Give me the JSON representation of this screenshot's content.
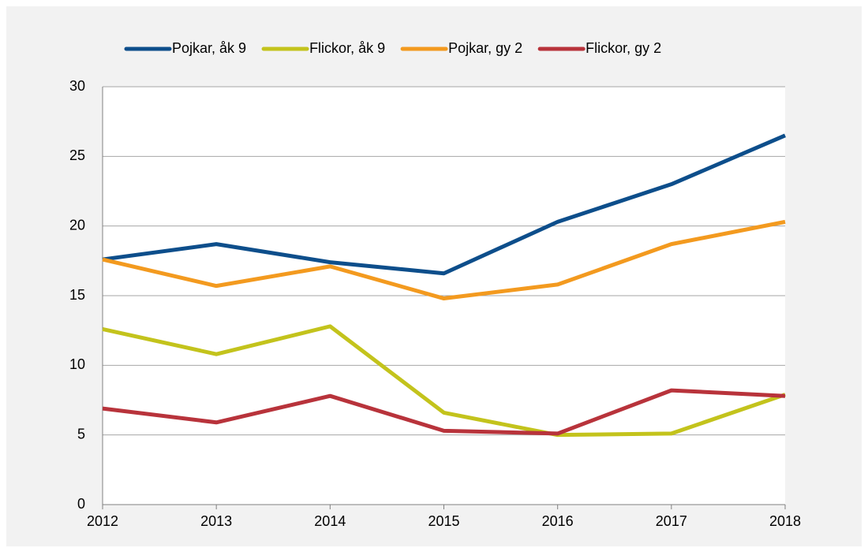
{
  "chart_data": {
    "type": "line",
    "x": [
      2012,
      2013,
      2014,
      2015,
      2016,
      2017,
      2018
    ],
    "xlim": [
      2012,
      2018
    ],
    "xticks": [
      2012,
      2013,
      2014,
      2015,
      2016,
      2017,
      2018
    ],
    "ylim": [
      0,
      30
    ],
    "yticks": [
      0,
      5,
      10,
      15,
      20,
      25,
      30
    ],
    "grid": true,
    "legend": "top",
    "series": [
      {
        "name": "Pojkar, åk 9",
        "color": "#0d4e8b",
        "values": [
          17.6,
          18.7,
          17.4,
          16.6,
          20.3,
          23.0,
          26.5
        ]
      },
      {
        "name": "Flickor, åk 9",
        "color": "#c3c31c",
        "values": [
          12.6,
          10.8,
          12.8,
          6.6,
          5.0,
          5.1,
          7.9
        ]
      },
      {
        "name": "Pojkar, gy 2",
        "color": "#f39a1f",
        "values": [
          17.6,
          15.7,
          17.1,
          14.8,
          15.8,
          18.7,
          20.3
        ]
      },
      {
        "name": "Flickor, gy 2",
        "color": "#b8333b",
        "values": [
          6.9,
          5.9,
          7.8,
          5.3,
          5.1,
          8.2,
          7.8
        ]
      }
    ]
  }
}
